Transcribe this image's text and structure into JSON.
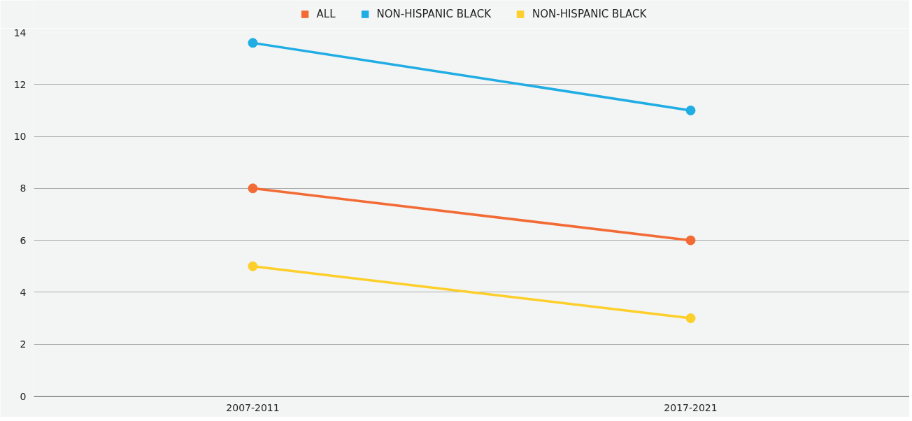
{
  "chart_data": {
    "type": "line",
    "categories": [
      "2007-2011",
      "2017-2021"
    ],
    "series": [
      {
        "name": "ALL",
        "color": "#f26b35",
        "values": [
          8,
          6
        ]
      },
      {
        "name": "NON-HISPANIC BLACK",
        "color": "#1fade4",
        "values": [
          13.6,
          11
        ]
      },
      {
        "name": "NON-HISPANIC BLACK",
        "color": "#fdcf2a",
        "values": [
          5,
          3
        ]
      }
    ],
    "ylim": [
      0,
      14
    ],
    "yticks": [
      0,
      2,
      4,
      6,
      8,
      10,
      12,
      14
    ],
    "grid": "y",
    "legend": "top",
    "marker": "circle",
    "line_style": "solid"
  }
}
